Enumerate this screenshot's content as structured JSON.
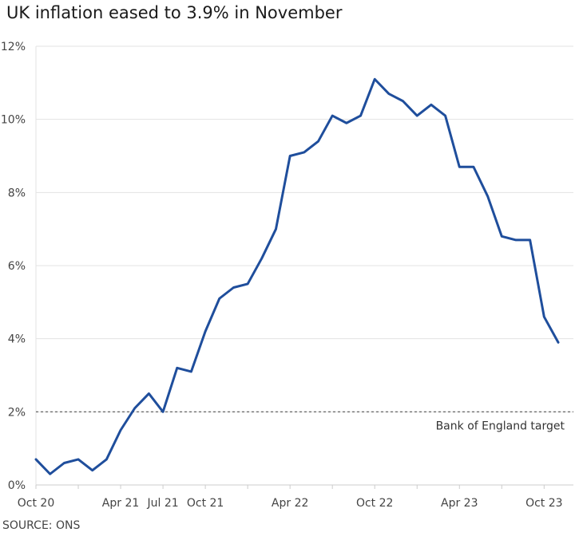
{
  "chart_data": {
    "type": "line",
    "title": "UK inflation eased to 3.9% in November",
    "source": "SOURCE: ONS",
    "xlabel": "",
    "ylabel": "",
    "ylim": [
      0,
      12
    ],
    "yticks": [
      {
        "value": 0,
        "label": "0%"
      },
      {
        "value": 2,
        "label": "2%"
      },
      {
        "value": 4,
        "label": "4%"
      },
      {
        "value": 6,
        "label": "6%"
      },
      {
        "value": 8,
        "label": "8%"
      },
      {
        "value": 10,
        "label": "10%"
      },
      {
        "value": 12,
        "label": "12%"
      }
    ],
    "xticks": [
      {
        "index": 0,
        "label": "Oct 20"
      },
      {
        "index": 6,
        "label": "Apr 21"
      },
      {
        "index": 9,
        "label": "Jul 21"
      },
      {
        "index": 12,
        "label": "Oct 21"
      },
      {
        "index": 18,
        "label": "Apr 22"
      },
      {
        "index": 24,
        "label": "Oct 22"
      },
      {
        "index": 30,
        "label": "Apr 23"
      },
      {
        "index": 36,
        "label": "Oct 23"
      }
    ],
    "x": [
      "Oct 20",
      "Nov 20",
      "Dec 20",
      "Jan 21",
      "Feb 21",
      "Mar 21",
      "Apr 21",
      "May 21",
      "Jun 21",
      "Jul 21",
      "Aug 21",
      "Sep 21",
      "Oct 21",
      "Nov 21",
      "Dec 21",
      "Jan 22",
      "Feb 22",
      "Mar 22",
      "Apr 22",
      "May 22",
      "Jun 22",
      "Jul 22",
      "Aug 22",
      "Sep 22",
      "Oct 22",
      "Nov 22",
      "Dec 22",
      "Jan 23",
      "Feb 23",
      "Mar 23",
      "Apr 23",
      "May 23",
      "Jun 23",
      "Jul 23",
      "Aug 23",
      "Sep 23",
      "Oct 23",
      "Nov 23"
    ],
    "series": [
      {
        "color": "#1f4e9c",
        "values": [
          0.7,
          0.3,
          0.6,
          0.7,
          0.4,
          0.7,
          1.5,
          2.1,
          2.5,
          2.0,
          3.2,
          3.1,
          4.2,
          5.1,
          5.4,
          5.5,
          6.2,
          7.0,
          9.0,
          9.1,
          9.4,
          10.1,
          9.9,
          10.1,
          11.1,
          10.7,
          10.5,
          10.1,
          10.4,
          10.1,
          8.7,
          8.7,
          7.9,
          6.8,
          6.7,
          6.7,
          4.6,
          3.9
        ]
      }
    ],
    "reference_line": {
      "value": 2,
      "label": "Bank of England target",
      "style": "dashed",
      "color": "#555555"
    },
    "grid": true
  }
}
